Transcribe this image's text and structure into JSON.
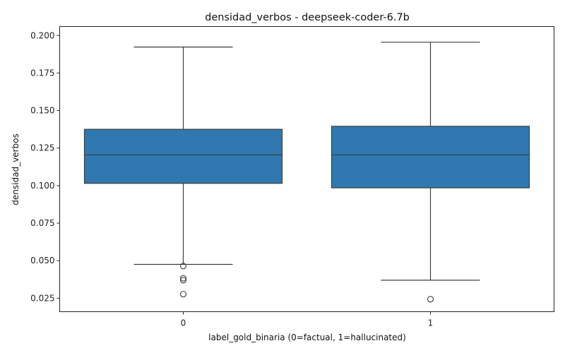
{
  "chart_data": {
    "type": "box",
    "title": "densidad_verbos - deepseek-coder-6.7b",
    "xlabel": "label_gold_binaria (0=factual, 1=hallucinated)",
    "ylabel": "densidad_verbos",
    "ylim": [
      0.016,
      0.206
    ],
    "yticks": [
      "0.025",
      "0.050",
      "0.075",
      "0.100",
      "0.125",
      "0.150",
      "0.175",
      "0.200"
    ],
    "categories": [
      "0",
      "1"
    ],
    "box_color": "#2f79b0",
    "line_color": "#3d3d3d",
    "boxes": [
      {
        "category": "0",
        "whisker_low": 0.0475,
        "q1": 0.1015,
        "median": 0.1205,
        "q3": 0.1375,
        "whisker_high": 0.1923,
        "outliers": [
          0.0464,
          0.0383,
          0.037,
          0.0277
        ]
      },
      {
        "category": "1",
        "whisker_low": 0.037,
        "q1": 0.0985,
        "median": 0.1205,
        "q3": 0.1395,
        "whisker_high": 0.1955,
        "outliers": [
          0.0243
        ]
      }
    ]
  }
}
